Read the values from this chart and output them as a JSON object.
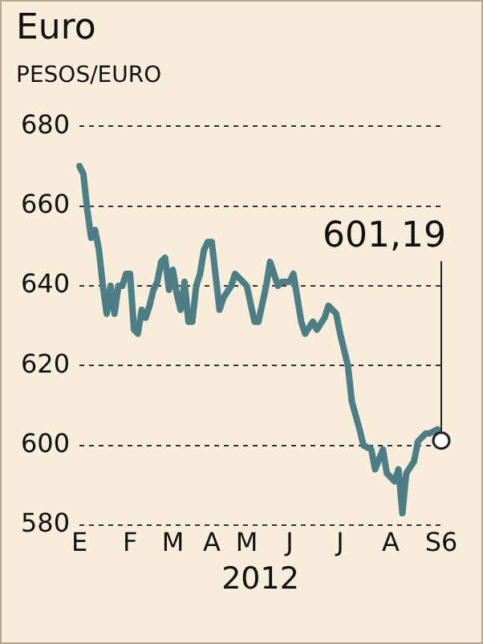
{
  "chart_data": {
    "type": "line",
    "title": "Euro",
    "ylabel": "PESOS/EURO",
    "xlabel": "2012",
    "categories": [
      "E",
      null,
      null,
      null,
      null,
      null,
      null,
      null,
      null,
      null,
      null,
      null,
      null,
      "F",
      null,
      null,
      null,
      null,
      null,
      null,
      null,
      null,
      null,
      null,
      "M",
      null,
      null,
      null,
      null,
      null,
      null,
      null,
      null,
      null,
      "A",
      null,
      null,
      null,
      null,
      null,
      null,
      null,
      null,
      "M",
      null,
      null,
      null,
      null,
      null,
      null,
      null,
      null,
      null,
      null,
      "J",
      null,
      null,
      null,
      null,
      null,
      null,
      null,
      null,
      null,
      null,
      null,
      null,
      "J",
      null,
      null,
      null,
      null,
      null,
      null,
      null,
      null,
      null,
      null,
      null,
      null,
      "A",
      null,
      null,
      null,
      null,
      null,
      null,
      null,
      null,
      null,
      null,
      null,
      null,
      "S6"
    ],
    "series": [
      {
        "color": "#4d7d85",
        "values": [
          670,
          668,
          659,
          652,
          654,
          649,
          640,
          633,
          640,
          633,
          640,
          640,
          643,
          643,
          629,
          628,
          634,
          632,
          635,
          639,
          641,
          646,
          647,
          639,
          644,
          638,
          634,
          641,
          631,
          631,
          640,
          643,
          649,
          651,
          651,
          null,
          634,
          637,
          null,
          640,
          643,
          null,
          641,
          640,
          null,
          631,
          631,
          null,
          640,
          646,
          null,
          640,
          641,
          null,
          641,
          643,
          null,
          631,
          628,
          null,
          631,
          629,
          null,
          632,
          635,
          null,
          633,
          628,
          null,
          620,
          611,
          null,
          604,
          600,
          null,
          599,
          594,
          null,
          599,
          593,
          null,
          591,
          594,
          583,
          593,
          null,
          596,
          601,
          null,
          603,
          603,
          null,
          604,
          601.19
        ]
      }
    ],
    "ylim": [
      580,
      680
    ],
    "yticks": [
      580,
      600,
      620,
      640,
      660,
      680
    ],
    "grid": "y",
    "legend": false,
    "marker": "none",
    "line_style": "solid",
    "annotations": [
      {
        "text": "601,19",
        "x": "S6",
        "y": 601.19
      }
    ]
  }
}
